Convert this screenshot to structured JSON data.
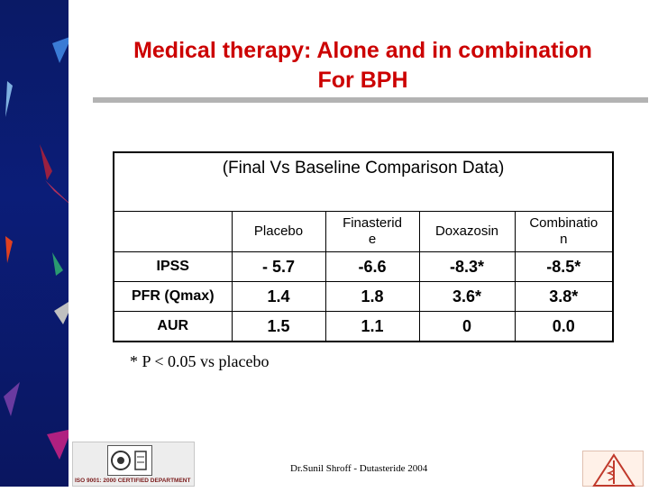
{
  "slide": {
    "title_lines": [
      "Medical therapy: Alone and in combination",
      "For BPH"
    ],
    "table": {
      "caption": "(Final Vs Baseline Comparison Data)",
      "header": [
        "",
        "Placebo",
        "Finasterid\ne",
        "Doxazosin",
        "Combinatio\nn"
      ],
      "rows": [
        {
          "label": "IPSS",
          "values": [
            "- 5.7",
            "-6.6",
            "-8.3*",
            "-8.5*"
          ]
        },
        {
          "label": "PFR (Qmax)",
          "values": [
            "1.4",
            "1.8",
            "3.6*",
            "3.8*"
          ]
        },
        {
          "label": "AUR",
          "values": [
            "1.5",
            "1.1",
            "0",
            "0.0"
          ]
        }
      ]
    },
    "footnote": "* P < 0.05 vs placebo",
    "footer": {
      "author": "Dr.Sunil Shroff - Dutasteride 2004",
      "certification": "ISO 9001: 2000 CERTIFIED DEPARTMENT"
    }
  },
  "colors": {
    "title": "#cc0000",
    "left_band": "#0b1d78",
    "title_rule": "#b3b3b3"
  }
}
